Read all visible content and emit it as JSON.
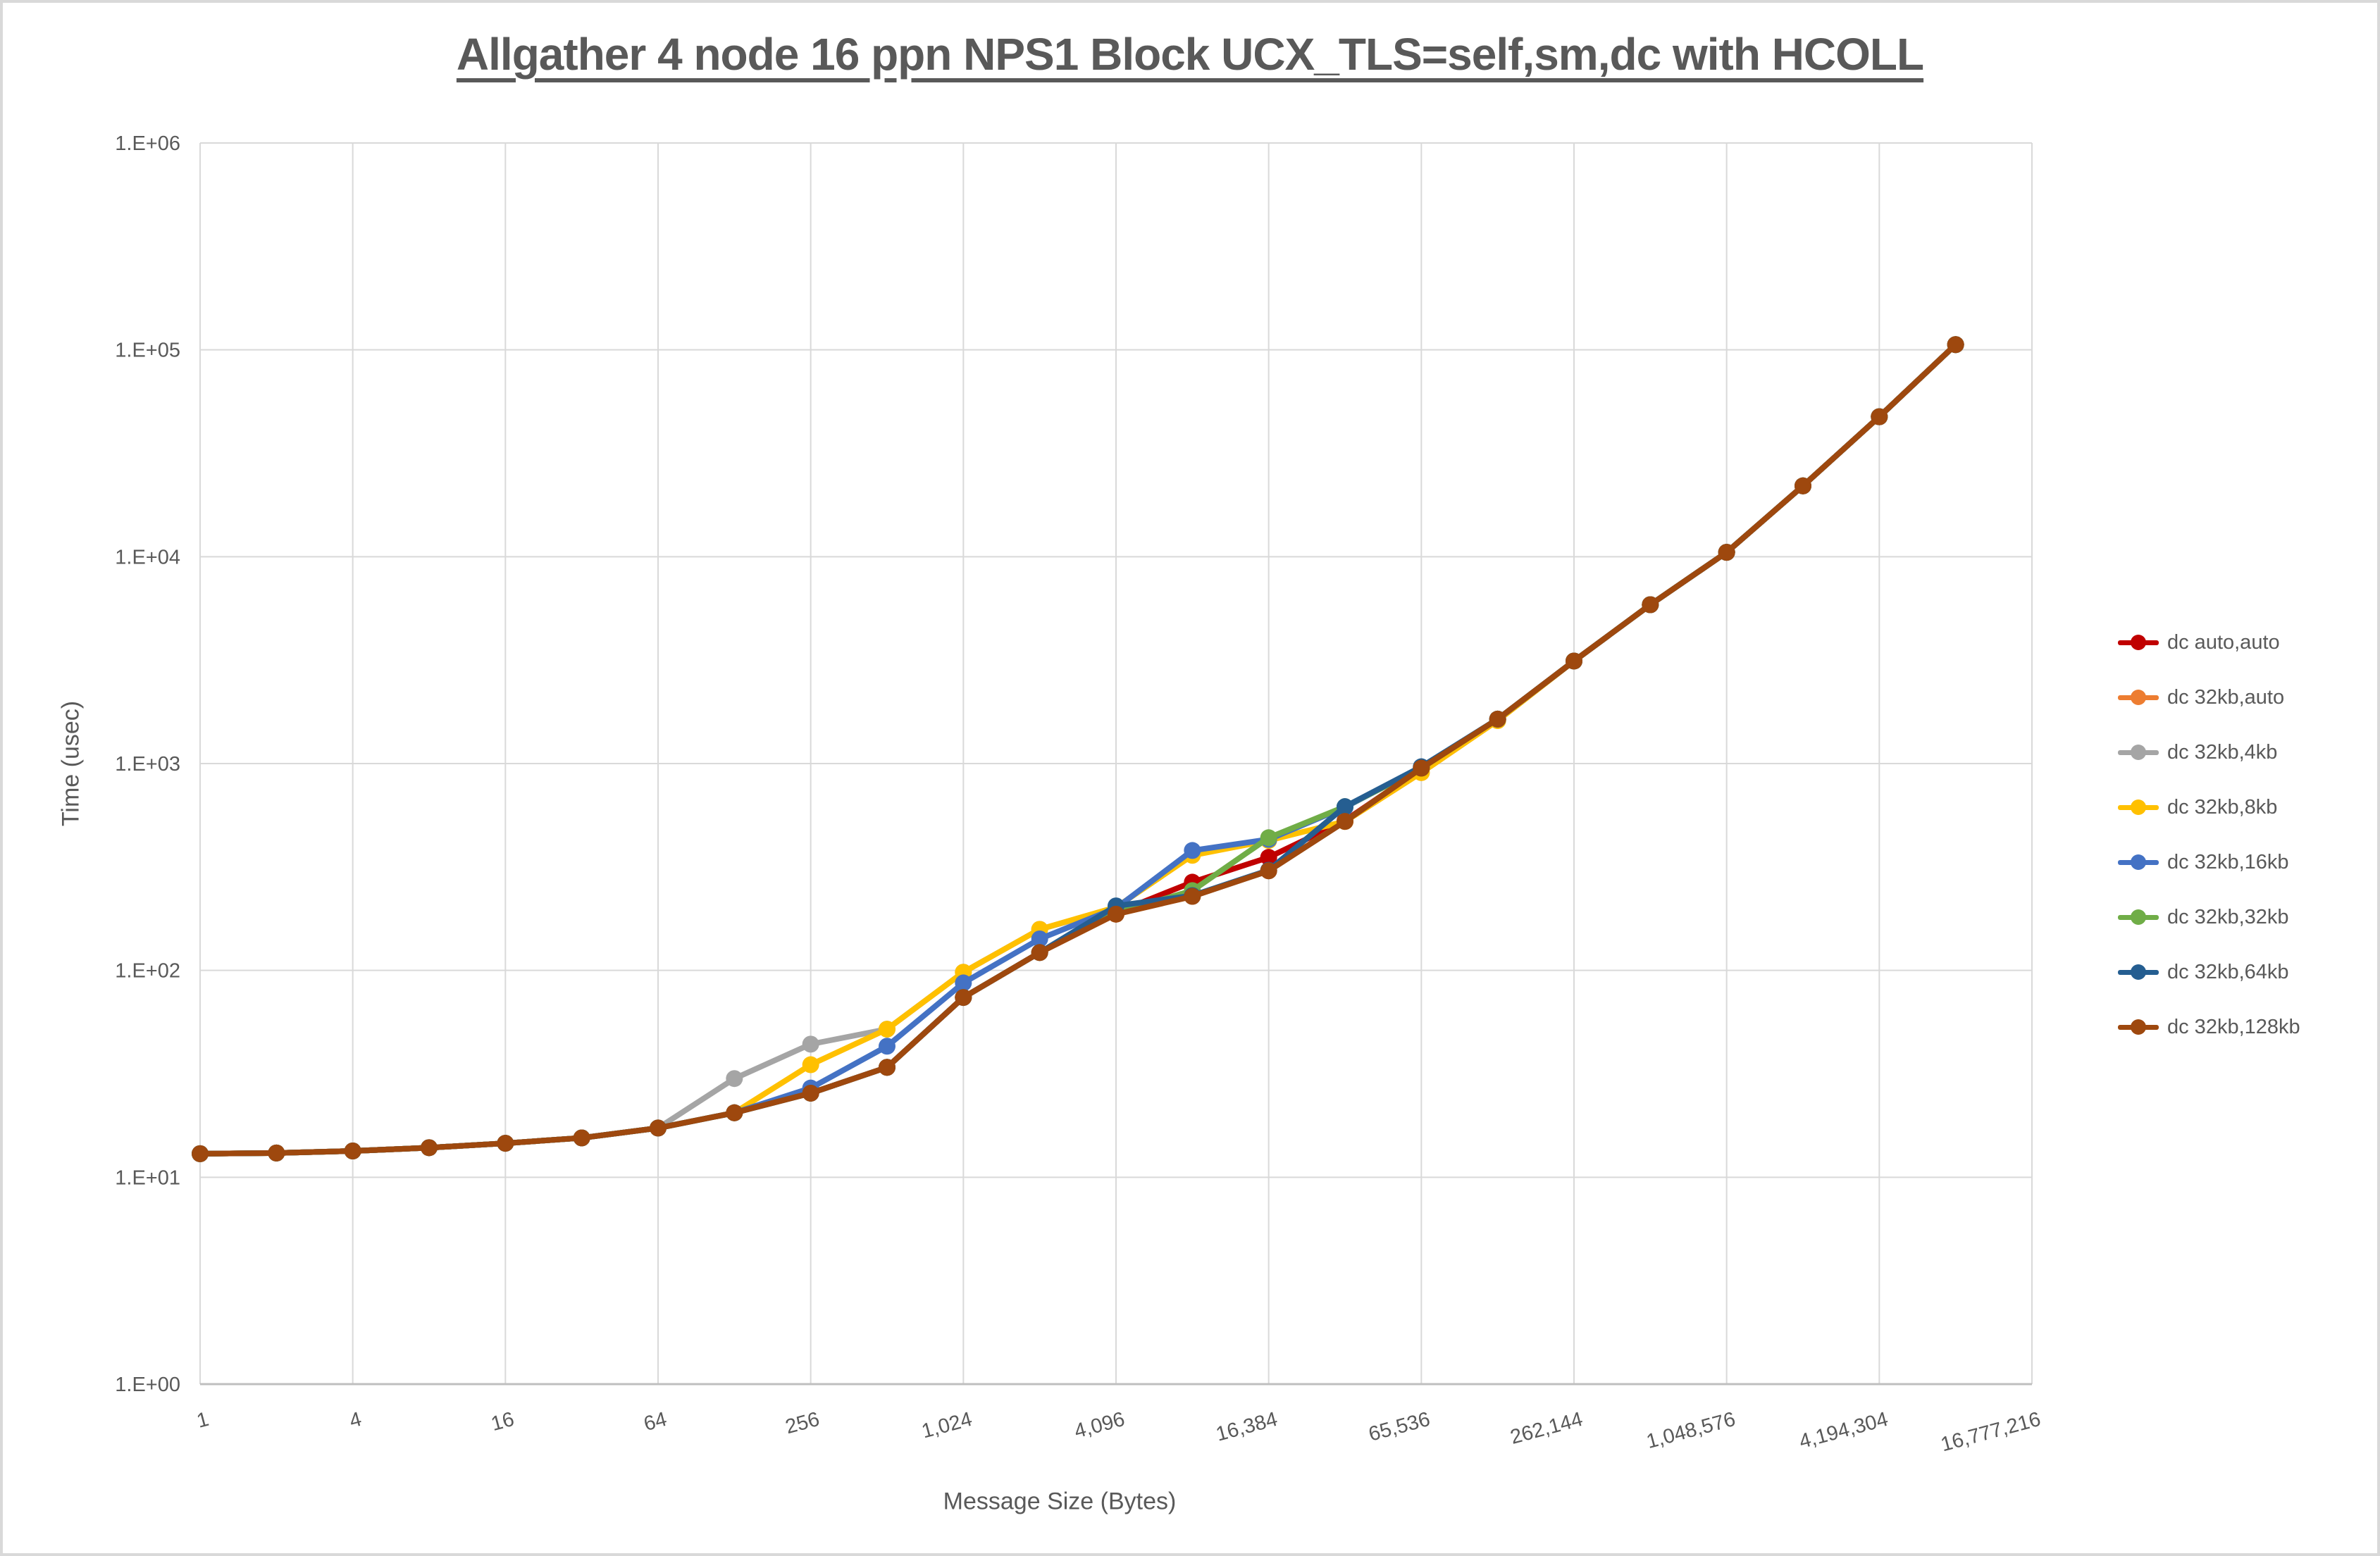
{
  "title": "Allgather 4 node 16 ppn NPS1 Block UCX_TLS=self,sm,dc with HCOLL",
  "styles": {
    "text_color": "#595959",
    "grid_color": "#d9d9d9",
    "axis_color": "#bfbfbf",
    "background": "#ffffff"
  },
  "chart_data": {
    "type": "line",
    "title": "Allgather 4 node 16 ppn NPS1 Block UCX_TLS=self,sm,dc with HCOLL",
    "xlabel": "Message Size (Bytes)",
    "ylabel": "Time (usec)",
    "x_scale": "log2",
    "y_scale": "log10",
    "ylim": [
      1,
      1000000
    ],
    "grid": true,
    "legend_position": "right",
    "x_tick_labels": [
      "1",
      "4",
      "16",
      "64",
      "256",
      "1,024",
      "4,096",
      "16,384",
      "65,536",
      "262,144",
      "1,048,576",
      "4,194,304",
      "16,777,216"
    ],
    "y_tick_labels": [
      "1.E+00",
      "1.E+01",
      "1.E+02",
      "1.E+03",
      "1.E+04",
      "1.E+05",
      "1.E+06"
    ],
    "categories": [
      1,
      2,
      4,
      8,
      16,
      32,
      64,
      128,
      256,
      512,
      1024,
      2048,
      4096,
      8192,
      16384,
      32768,
      65536,
      131072,
      262144,
      524288,
      1048576,
      2097152,
      4194304,
      8388608
    ],
    "series": [
      {
        "name": "dc auto,auto",
        "color": "#C00000",
        "values": [
          13.0,
          13.1,
          13.4,
          13.9,
          14.6,
          15.5,
          17.3,
          20.5,
          25.5,
          34,
          74,
          122,
          190,
          267,
          352,
          530,
          945,
          1640,
          3130,
          5860,
          10500,
          22000,
          47500,
          106000
        ]
      },
      {
        "name": "dc 32kb,auto",
        "color": "#ED7D31",
        "values": [
          13.0,
          13.1,
          13.4,
          13.9,
          14.6,
          15.5,
          17.3,
          20.5,
          25.5,
          34,
          74,
          122,
          187,
          228,
          303,
          525,
          905,
          1615,
          3130,
          5860,
          10500,
          22000,
          47500,
          106000
        ]
      },
      {
        "name": "dc 32kb,4kb",
        "color": "#A5A5A5",
        "values": [
          13.0,
          13.1,
          13.4,
          13.9,
          14.6,
          15.5,
          17.3,
          30,
          44,
          52,
          98,
          158,
          200,
          228,
          303,
          525,
          950,
          1640,
          3130,
          5860,
          10500,
          22000,
          47500,
          106000
        ]
      },
      {
        "name": "dc 32kb,8kb",
        "color": "#FFC000",
        "values": [
          13.0,
          13.1,
          13.4,
          13.9,
          14.6,
          15.5,
          17.3,
          20.5,
          35,
          52,
          98,
          158,
          202,
          360,
          425,
          525,
          905,
          1615,
          3130,
          5860,
          10500,
          22000,
          47500,
          106000
        ]
      },
      {
        "name": "dc 32kb,16kb",
        "color": "#4472C4",
        "values": [
          13.0,
          13.1,
          13.4,
          13.9,
          14.6,
          15.5,
          17.3,
          20.5,
          27,
          43,
          87,
          142,
          200,
          380,
          430,
          615,
          960,
          1640,
          3130,
          5860,
          10500,
          22000,
          47500,
          106000
        ]
      },
      {
        "name": "dc 32kb,32kb",
        "color": "#70AD47",
        "values": [
          13.0,
          13.1,
          13.4,
          13.9,
          14.6,
          15.5,
          17.3,
          20.5,
          25.5,
          34,
          74,
          122,
          190,
          243,
          438,
          619,
          950,
          1640,
          3130,
          5860,
          10500,
          22000,
          47500,
          106000
        ]
      },
      {
        "name": "dc 32kb,64kb",
        "color": "#255E91",
        "values": [
          13.0,
          13.1,
          13.4,
          13.9,
          14.6,
          15.5,
          17.3,
          20.5,
          25.5,
          34,
          74,
          122,
          205,
          230,
          305,
          619,
          965,
          1640,
          3130,
          5860,
          10500,
          22000,
          47500,
          106000
        ]
      },
      {
        "name": "dc 32kb,128kb",
        "color": "#9E480E",
        "values": [
          13.0,
          13.1,
          13.4,
          13.9,
          14.6,
          15.5,
          17.3,
          20.5,
          25.5,
          34,
          74,
          122,
          187,
          228,
          303,
          525,
          950,
          1640,
          3130,
          5860,
          10500,
          22000,
          47500,
          106000
        ]
      }
    ]
  }
}
